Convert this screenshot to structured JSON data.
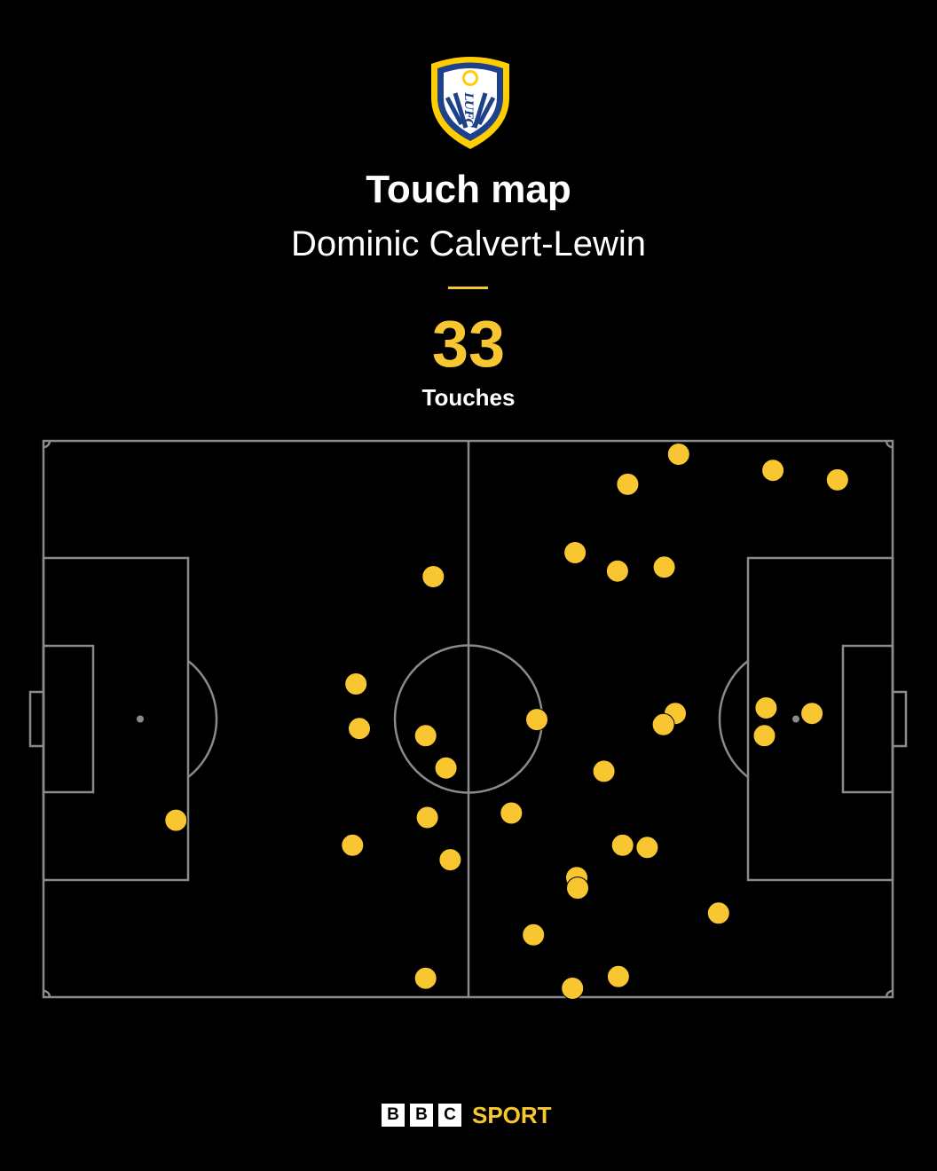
{
  "header": {
    "title": "Touch map",
    "player": "Dominic Calvert-Lewin",
    "count": "33",
    "count_label": "Touches",
    "crest_text": "LUFC"
  },
  "colors": {
    "background": "#000000",
    "accent": "#F7C630",
    "pitch_lines": "#8a8a8a",
    "crest_blue": "#1D428A",
    "crest_yellow": "#FFCD00"
  },
  "footer": {
    "bbc_letters": [
      "B",
      "B",
      "C"
    ],
    "sport_label": "SPORT"
  },
  "chart_data": {
    "type": "scatter",
    "title": "Touch map",
    "subtitle": "Dominic Calvert-Lewin",
    "pitch": {
      "length": 100,
      "width": 100,
      "attack_direction": "right"
    },
    "xlim": [
      0,
      100
    ],
    "ylim": [
      0,
      100
    ],
    "series": [
      {
        "name": "",
        "points": [
          {
            "x": 74.8,
            "y": 2.4
          },
          {
            "x": 85.9,
            "y": 5.3
          },
          {
            "x": 93.5,
            "y": 7.0
          },
          {
            "x": 68.8,
            "y": 7.8
          },
          {
            "x": 62.6,
            "y": 20.1
          },
          {
            "x": 67.6,
            "y": 23.4
          },
          {
            "x": 73.1,
            "y": 22.7
          },
          {
            "x": 45.9,
            "y": 24.4
          },
          {
            "x": 36.8,
            "y": 43.7
          },
          {
            "x": 85.1,
            "y": 48.0
          },
          {
            "x": 90.5,
            "y": 49.0
          },
          {
            "x": 74.4,
            "y": 49.0
          },
          {
            "x": 58.1,
            "y": 50.1
          },
          {
            "x": 73.0,
            "y": 51.0
          },
          {
            "x": 37.2,
            "y": 51.7
          },
          {
            "x": 45.0,
            "y": 53.0
          },
          {
            "x": 84.9,
            "y": 53.0
          },
          {
            "x": 47.4,
            "y": 58.8
          },
          {
            "x": 66.0,
            "y": 59.4
          },
          {
            "x": 55.1,
            "y": 66.9
          },
          {
            "x": 15.6,
            "y": 68.2
          },
          {
            "x": 45.2,
            "y": 67.7
          },
          {
            "x": 36.4,
            "y": 72.7
          },
          {
            "x": 68.2,
            "y": 72.7
          },
          {
            "x": 71.1,
            "y": 73.1
          },
          {
            "x": 47.9,
            "y": 75.3
          },
          {
            "x": 62.8,
            "y": 78.5
          },
          {
            "x": 62.9,
            "y": 80.4
          },
          {
            "x": 79.5,
            "y": 84.9
          },
          {
            "x": 57.7,
            "y": 88.8
          },
          {
            "x": 45.0,
            "y": 96.6
          },
          {
            "x": 67.7,
            "y": 96.3
          },
          {
            "x": 62.3,
            "y": 98.4
          }
        ]
      }
    ],
    "grid": false,
    "legend": "none"
  }
}
